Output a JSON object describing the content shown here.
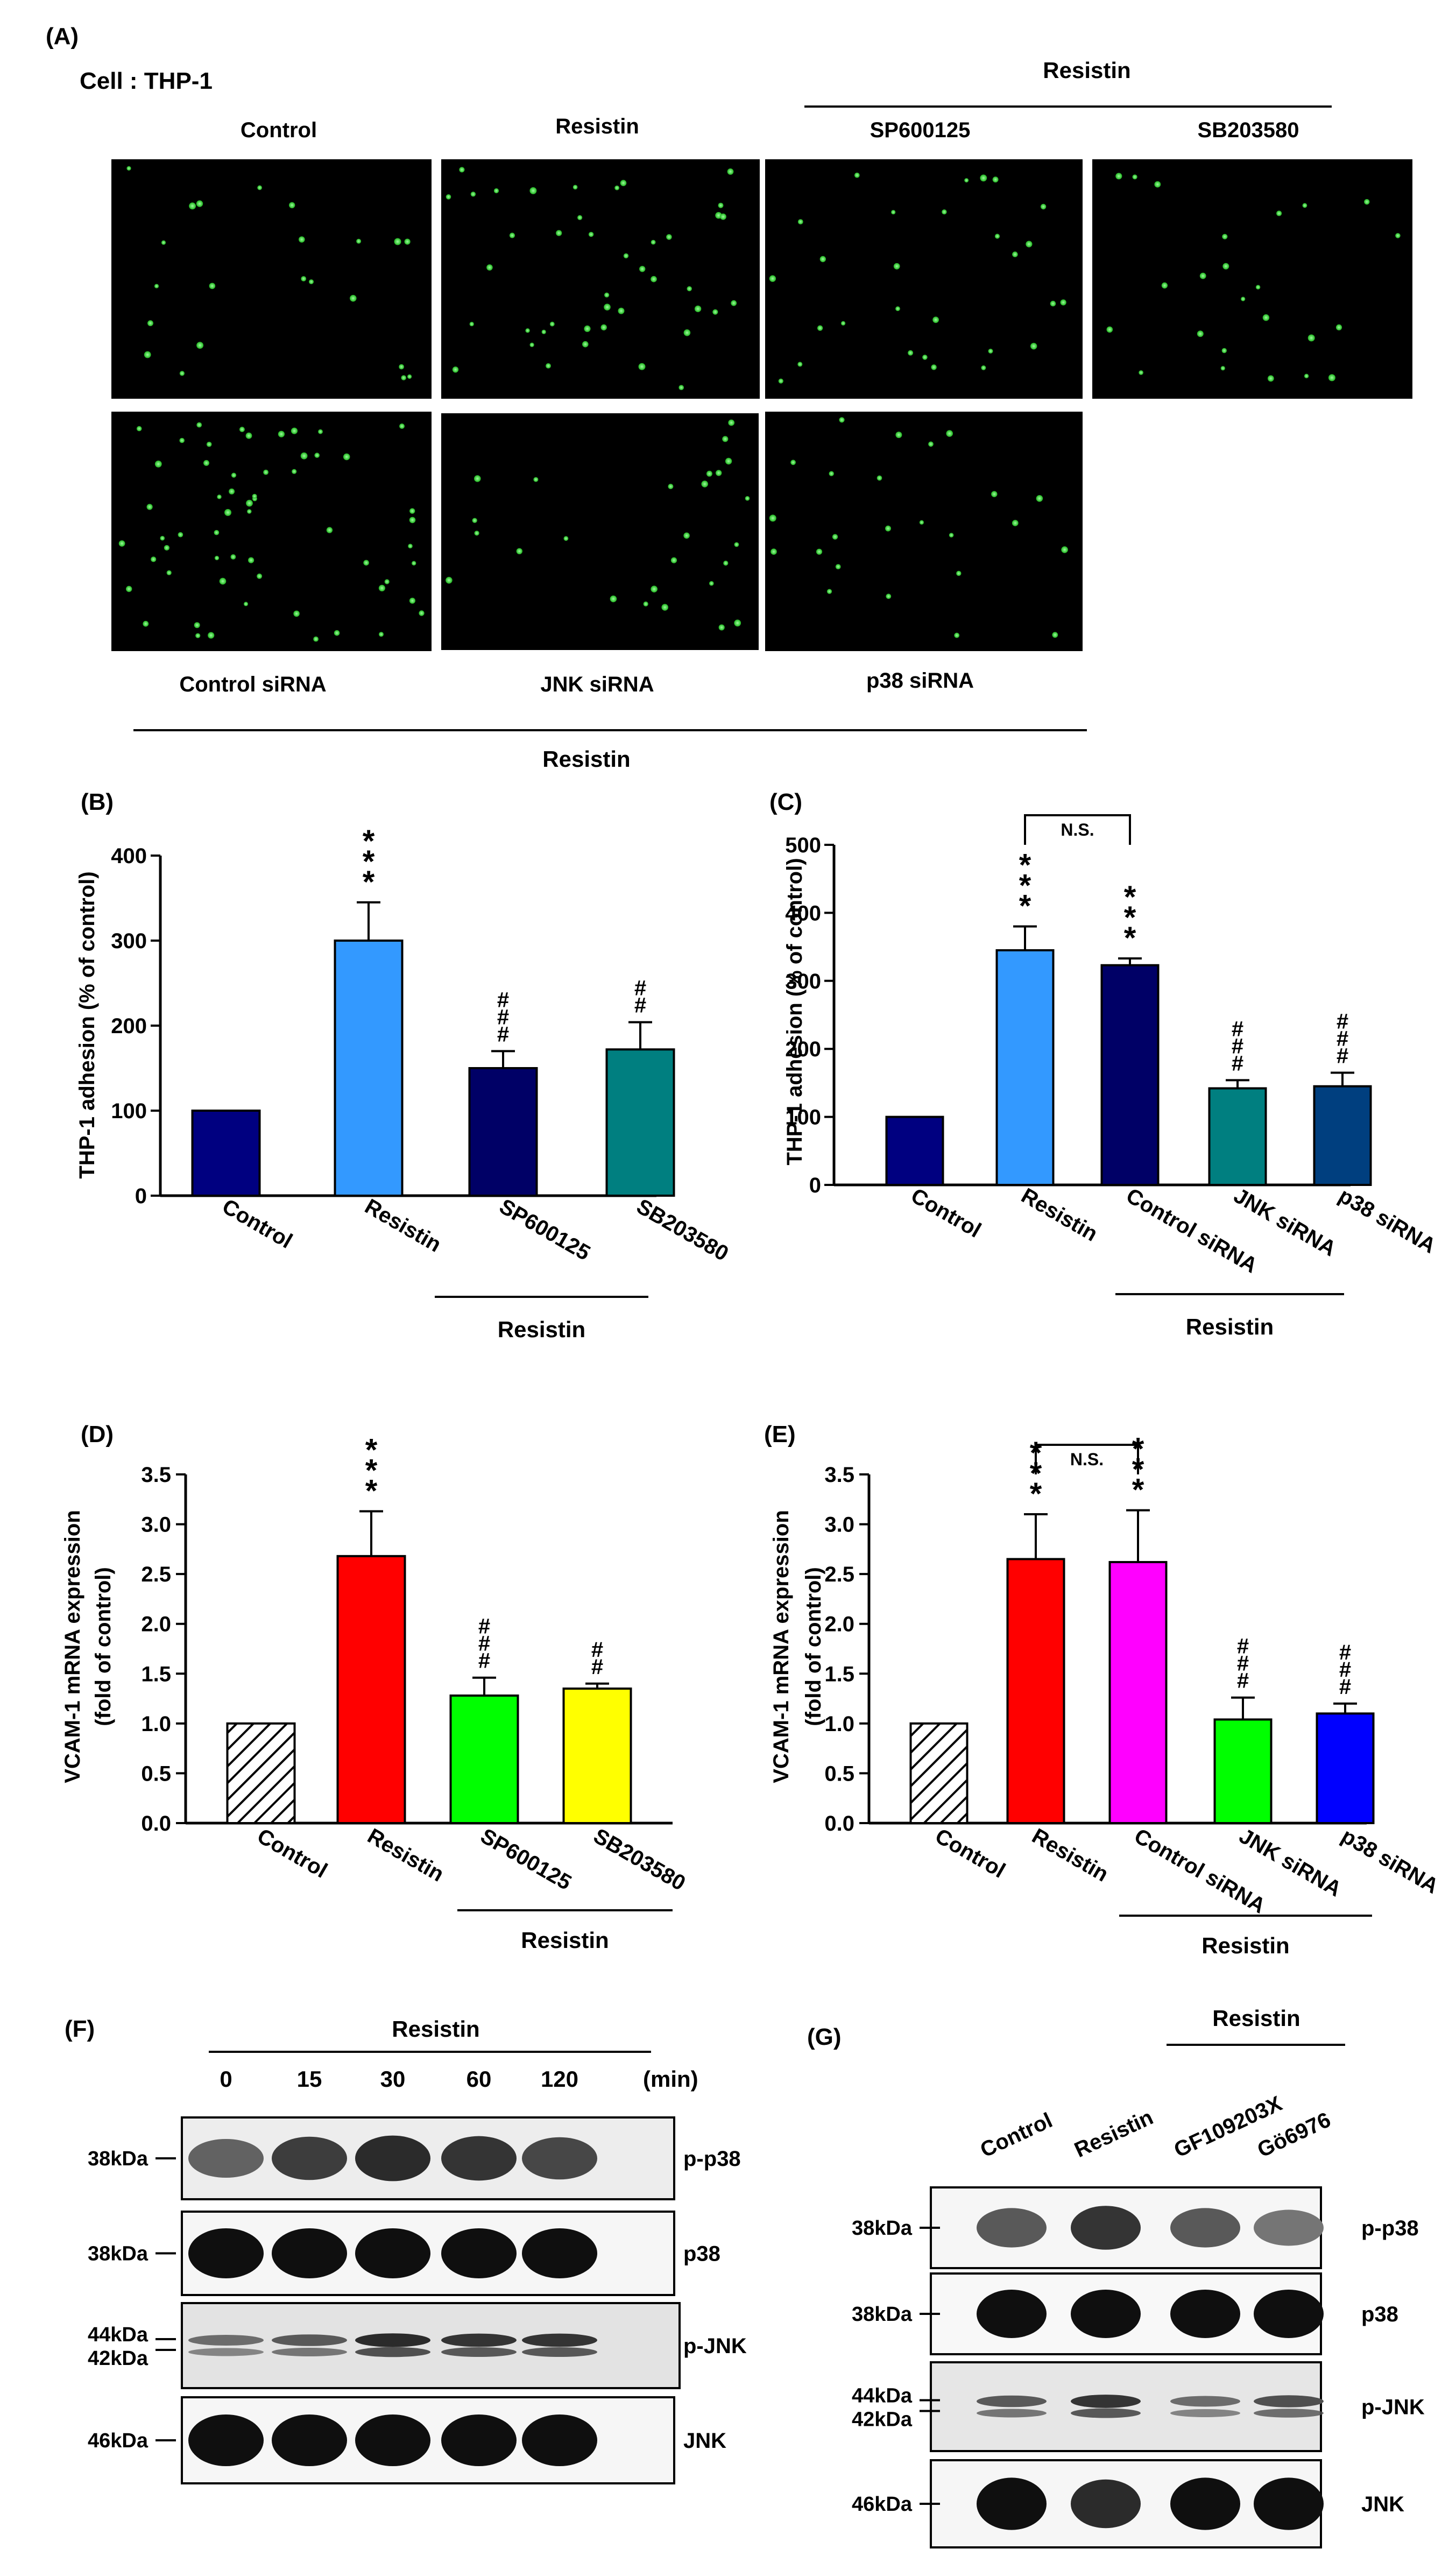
{
  "panel_a": {
    "letter": "(A)",
    "cell_label": "Cell : THP-1",
    "top_labels": [
      "Control",
      "Resistin",
      "SP600125",
      "SB203580"
    ],
    "top_group": "Resistin",
    "bottom_labels": [
      "Control siRNA",
      "JNK siRNA",
      "p38 siRNA"
    ],
    "bottom_group": "Resistin",
    "cell_color": "#2fd52f"
  },
  "chart_data": [
    {
      "id": "B",
      "type": "bar",
      "letter": "(B)",
      "ylabel": "THP-1 adhesion (% of control)",
      "ylim": [
        0,
        400
      ],
      "yticks": [
        "0",
        "100",
        "200",
        "300",
        "400"
      ],
      "categories": [
        "Control",
        "Resistin",
        "SP600125",
        "SB203580"
      ],
      "values": [
        100,
        300,
        150,
        172
      ],
      "errors": [
        0,
        45,
        20,
        32
      ],
      "colors": [
        "#000080",
        "#3399ff",
        "#000066",
        "#007f80"
      ],
      "annotations": [
        "",
        "***",
        "###",
        "##"
      ],
      "group_label": "Resistin"
    },
    {
      "id": "C",
      "type": "bar",
      "letter": "(C)",
      "ylabel": "THP-1 adhesion (% of control)",
      "ylim": [
        0,
        500
      ],
      "yticks": [
        "0",
        "100",
        "200",
        "300",
        "400",
        "500"
      ],
      "categories": [
        "Control",
        "Resistin",
        "Control siRNA",
        "JNK siRNA",
        "p38 siRNA"
      ],
      "values": [
        100,
        345,
        323,
        142,
        145
      ],
      "errors": [
        0,
        35,
        10,
        12,
        20
      ],
      "colors": [
        "#000080",
        "#3399ff",
        "#000066",
        "#007f80",
        "#003f7f"
      ],
      "annotations": [
        "",
        "***",
        "***",
        "###",
        "###"
      ],
      "bracket_label": "N.S.",
      "group_label": "Resistin"
    },
    {
      "id": "D",
      "type": "bar",
      "letter": "(D)",
      "ylabel": "VCAM-1 mRNA expression",
      "ylabel2": "(fold of control)",
      "ylim": [
        0,
        3.5
      ],
      "yticks": [
        "0.0",
        "0.5",
        "1.0",
        "1.5",
        "2.0",
        "2.5",
        "3.0",
        "3.5"
      ],
      "categories": [
        "Control",
        "Resistin",
        "SP600125",
        "SB203580"
      ],
      "values": [
        1.0,
        2.68,
        1.28,
        1.35
      ],
      "errors": [
        0,
        0.45,
        0.18,
        0.05
      ],
      "colors": [
        "hatch",
        "#ff0000",
        "#00ff00",
        "#ffff00"
      ],
      "annotations": [
        "",
        "***",
        "###",
        "##"
      ],
      "group_label": "Resistin"
    },
    {
      "id": "E",
      "type": "bar",
      "letter": "(E)",
      "ylabel": "VCAM-1 mRNA expression",
      "ylabel2": "(fold of control)",
      "ylim": [
        0,
        3.5
      ],
      "yticks": [
        "0.0",
        "0.5",
        "1.0",
        "1.5",
        "2.0",
        "2.5",
        "3.0",
        "3.5"
      ],
      "categories": [
        "Control",
        "Resistin",
        "Control siRNA",
        "JNK siRNA",
        "p38 siRNA"
      ],
      "values": [
        1.0,
        2.65,
        2.62,
        1.04,
        1.1
      ],
      "errors": [
        0,
        0.45,
        0.52,
        0.22,
        0.1
      ],
      "colors": [
        "hatch",
        "#ff0000",
        "#ff00ff",
        "#00ff00",
        "#0000ff"
      ],
      "annotations": [
        "",
        "***",
        "***",
        "###",
        "###"
      ],
      "bracket_label": "N.S.",
      "group_label": "Resistin"
    }
  ],
  "panel_f": {
    "letter": "(F)",
    "treatment": "Resistin",
    "times": [
      "0",
      "15",
      "30",
      "60",
      "120"
    ],
    "unit": "(min)",
    "rows": [
      {
        "mw": "38kDa",
        "protein": "p-p38",
        "intensity": [
          0.55,
          0.75,
          0.85,
          0.8,
          0.7
        ]
      },
      {
        "mw": "38kDa",
        "protein": "p38",
        "intensity": [
          1,
          1,
          1,
          1,
          1
        ]
      },
      {
        "mw": "44kDa",
        "mw2": "42kDa",
        "protein": "p-JNK",
        "intensity": [
          0.5,
          0.6,
          0.85,
          0.8,
          0.8
        ]
      },
      {
        "mw": "46kDa",
        "protein": "JNK",
        "intensity": [
          1,
          1,
          1,
          1,
          1
        ]
      }
    ]
  },
  "panel_g": {
    "letter": "(G)",
    "treatment": "Resistin",
    "lanes": [
      "Control",
      "Resistin",
      "GF109203X",
      "Gö6976"
    ],
    "rows": [
      {
        "mw": "38kDa",
        "protein": "p-p38",
        "intensity": [
          0.6,
          0.8,
          0.6,
          0.45
        ]
      },
      {
        "mw": "38kDa",
        "protein": "p38",
        "intensity": [
          1,
          1,
          1,
          1
        ]
      },
      {
        "mw": "44kDa",
        "mw2": "42kDa",
        "protein": "p-JNK",
        "intensity": [
          0.6,
          0.8,
          0.5,
          0.65
        ]
      },
      {
        "mw": "46kDa",
        "protein": "JNK",
        "intensity": [
          1,
          0.85,
          1,
          1
        ]
      }
    ]
  }
}
